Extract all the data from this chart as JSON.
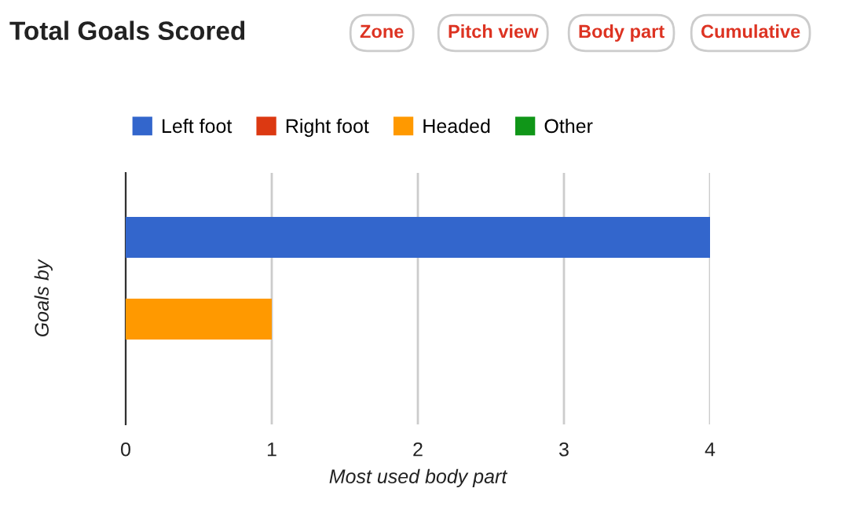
{
  "chart_data": {
    "type": "bar",
    "orientation": "horizontal",
    "title": "Total Goals Scored",
    "xlabel": "Most used body part",
    "ylabel": "Goals by",
    "categories": [
      null
    ],
    "series": [
      {
        "name": "Left foot",
        "color": "#3366cc",
        "values": [
          4
        ]
      },
      {
        "name": "Right foot",
        "color": "#dc3912",
        "values": [
          0
        ]
      },
      {
        "name": "Headed",
        "color": "#ff9900",
        "values": [
          1
        ]
      },
      {
        "name": "Other",
        "color": "#109618",
        "values": [
          0
        ]
      }
    ],
    "xlim": [
      0,
      4
    ],
    "xticks": [
      0,
      1,
      2,
      3,
      4
    ],
    "grid": "x",
    "legend": "top left",
    "annotations": [
      "Zone",
      "Pitch view",
      "Body part",
      "Cumulative"
    ]
  }
}
